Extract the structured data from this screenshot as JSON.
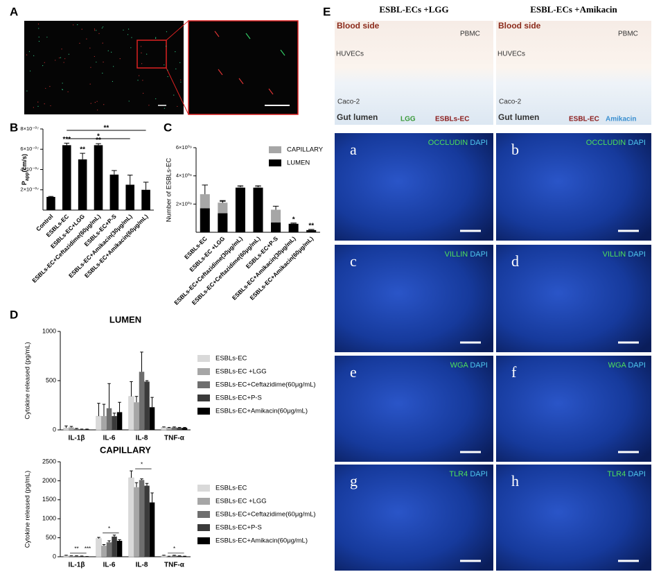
{
  "panel_labels": [
    "A",
    "B",
    "C",
    "D",
    "E"
  ],
  "chart_data": [
    {
      "type": "bar",
      "y_label": {
        "symbol": "P",
        "subscript": "app",
        "unit": "(cm/s)"
      },
      "categories": [
        "Control",
        "ESBLs-EC",
        "ESBLs-EC+LGG",
        "ESBLs-EC+Ceftazidime(60μg/mL)",
        "ESBLs-EC+P-S",
        "ESBLs-EC+Amikacin(30μg/mL)",
        "ESBLs-EC+Amikacin(60μg/mL)"
      ],
      "values": [
        1.3e-07,
        6.4e-07,
        5e-07,
        6.4e-07,
        3.5e-07,
        2.5e-07,
        2e-07
      ],
      "errors": [
        5e-09,
        2e-08,
        6e-08,
        1.5e-08,
        4e-08,
        9.5e-08,
        7.5e-08
      ],
      "significance": [
        null,
        "***",
        "**",
        "**",
        null,
        null,
        null
      ],
      "brackets": [
        {
          "between": [
            "ESBLs-EC",
            "ESBLs-EC+Amikacin(60μg/mL)"
          ],
          "label": "**"
        },
        {
          "between": [
            "ESBLs-EC",
            "ESBLs-EC+Amikacin(30μg/mL)"
          ],
          "label": "*"
        }
      ],
      "color": "#000000",
      "ylim": [
        0,
        8e-07
      ],
      "yticks": [
        {
          "value": 2e-07,
          "label": "2×10⁻⁰⁷"
        },
        {
          "value": 4e-07,
          "label": "4×10⁻⁰⁷"
        },
        {
          "value": 6e-07,
          "label": "6×10⁻⁰⁷"
        },
        {
          "value": 8e-07,
          "label": "8×10⁻⁰⁷"
        }
      ]
    },
    {
      "type": "bar",
      "stacked": true,
      "y_label": "Number of ESBLs-EC",
      "categories": [
        "ESBLs-EC",
        "ESBLs-EC +LGG",
        "ESBLs-EC+Ceftazidime(30μg/mL)",
        "ESBLs-EC+Ceftazidime(60μg/mL)",
        "ESBLs-EC+P-S",
        "ESBLs-EC+Amikacin(30μg/mL)",
        "ESBLs-EC+Amikacin(60μg/mL)"
      ],
      "series": [
        {
          "name": "CAPILLARY",
          "color": "#a6a6a6",
          "values": [
            1000000000.0,
            750000000.0,
            50000000.0,
            50000000.0,
            900000000.0,
            20000000.0,
            20000000.0
          ],
          "errors": [
            650000000.0,
            150000000.0,
            100000000.0,
            100000000.0,
            250000000.0,
            30000000.0,
            30000000.0
          ]
        },
        {
          "name": "LUMEN",
          "color": "#000000",
          "values": [
            1700000000.0,
            1350000000.0,
            3150000000.0,
            3150000000.0,
            700000000.0,
            600000000.0,
            150000000.0
          ],
          "errors": [
            600000000.0,
            850000000.0,
            50000000.0,
            50000000.0,
            150000000.0,
            50000000.0,
            50000000.0
          ]
        }
      ],
      "significance": [
        null,
        null,
        null,
        null,
        null,
        "*",
        "**"
      ],
      "ylim": [
        0,
        6000000000.0
      ],
      "yticks": [
        {
          "value": 2000000000.0,
          "label": "2×10⁰⁹"
        },
        {
          "value": 4000000000.0,
          "label": "4×10⁰⁹"
        },
        {
          "value": 6000000000.0,
          "label": "6×10⁰⁹"
        }
      ]
    },
    {
      "type": "bar",
      "title": "LUMEN",
      "y_label": "Cytokine released (pg/mL)",
      "categories": [
        "IL-1β",
        "IL-6",
        "IL-8",
        "TNF-α"
      ],
      "series": [
        {
          "name": "ESBLs-EC",
          "color": "#d9d9d9",
          "values": [
            20,
            140,
            340,
            25
          ],
          "errors": [
            20,
            130,
            150,
            5
          ]
        },
        {
          "name": "ESBLs-EC +LGG",
          "color": "#a6a6a6",
          "values": [
            25,
            140,
            280,
            20
          ],
          "errors": [
            10,
            120,
            60,
            5
          ]
        },
        {
          "name": "ESBLs-EC+Ceftazidime(60μg/mL)",
          "color": "#6e6e6e",
          "values": [
            10,
            220,
            590,
            25
          ],
          "errors": [
            5,
            250,
            200,
            5
          ]
        },
        {
          "name": "ESBLs-EC+P-S",
          "color": "#3a3a3a",
          "values": [
            5,
            140,
            490,
            20
          ],
          "errors": [
            3,
            30,
            10,
            5
          ]
        },
        {
          "name": "ESBLs-EC+Amikacin(60μg/mL)",
          "color": "#000000",
          "values": [
            5,
            180,
            230,
            20
          ],
          "errors": [
            3,
            100,
            100,
            5
          ]
        }
      ],
      "ylim": [
        0,
        1000
      ],
      "yticks": [
        0,
        500,
        1000
      ]
    },
    {
      "type": "bar",
      "title": "CAPILLARY",
      "y_label": "Cytokine released (pg/mL)",
      "categories": [
        "IL-1β",
        "IL-6",
        "IL-8",
        "TNF-α"
      ],
      "series": [
        {
          "name": "ESBLs-EC",
          "color": "#d9d9d9",
          "values": [
            30,
            480,
            2080,
            30
          ],
          "errors": [
            10,
            30,
            180,
            10
          ]
        },
        {
          "name": "ESBLs-EC +LGG",
          "color": "#a6a6a6",
          "values": [
            20,
            290,
            1830,
            10
          ],
          "errors": [
            5,
            30,
            120,
            5
          ]
        },
        {
          "name": "ESBLs-EC+Ceftazidime(60μg/mL)",
          "color": "#6e6e6e",
          "values": [
            20,
            380,
            2020,
            30
          ],
          "errors": [
            5,
            40,
            30,
            10
          ]
        },
        {
          "name": "ESBLs-EC+P-S",
          "color": "#3a3a3a",
          "values": [
            15,
            530,
            1870,
            20
          ],
          "errors": [
            5,
            40,
            60,
            5
          ]
        },
        {
          "name": "ESBLs-EC+Amikacin(60μg/mL)",
          "color": "#000000",
          "values": [
            5,
            420,
            1430,
            10
          ],
          "errors": [
            2,
            30,
            250,
            5
          ]
        }
      ],
      "annotations": [
        {
          "category": "IL-1β",
          "label": "**"
        },
        {
          "category": "IL-1β",
          "label": "***"
        },
        {
          "category": "IL-6",
          "label": "*"
        },
        {
          "category": "IL-8",
          "label": "*"
        },
        {
          "category": "TNF-α",
          "label": "*"
        }
      ],
      "ylim": [
        0,
        2500
      ],
      "yticks": [
        0,
        500,
        1000,
        1500,
        2000,
        2500
      ]
    }
  ],
  "figure_e": {
    "headings": [
      "ESBL-ECs +LGG",
      "ESBL-ECs +Amikacin"
    ],
    "diagrams": [
      {
        "blood": "Blood side",
        "pbmc": "PBMC",
        "huvec": "HUVECs",
        "caco": "Caco-2",
        "gut": "Gut lumen",
        "labels": [
          "LGG",
          "ESBLs-EC"
        ]
      },
      {
        "blood": "Blood side",
        "pbmc": "PBMC",
        "huvec": "HUVECs",
        "caco": "Caco-2",
        "gut": "Gut lumen",
        "labels": [
          "ESBL-EC",
          "Amikacin"
        ]
      }
    ],
    "images": [
      {
        "letter": "a",
        "stain": "OCCLUDIN",
        "dapi": "DAPI"
      },
      {
        "letter": "b",
        "stain": "OCCLUDIN",
        "dapi": "DAPI"
      },
      {
        "letter": "c",
        "stain": "VILLIN",
        "dapi": "DAPI"
      },
      {
        "letter": "d",
        "stain": "VILLIN",
        "dapi": "DAPI"
      },
      {
        "letter": "e",
        "stain": "WGA",
        "dapi": "DAPI"
      },
      {
        "letter": "f",
        "stain": "WGA",
        "dapi": "DAPI"
      },
      {
        "letter": "g",
        "stain": "TLR4",
        "dapi": "DAPI"
      },
      {
        "letter": "h",
        "stain": "TLR4",
        "dapi": "DAPI"
      }
    ]
  }
}
